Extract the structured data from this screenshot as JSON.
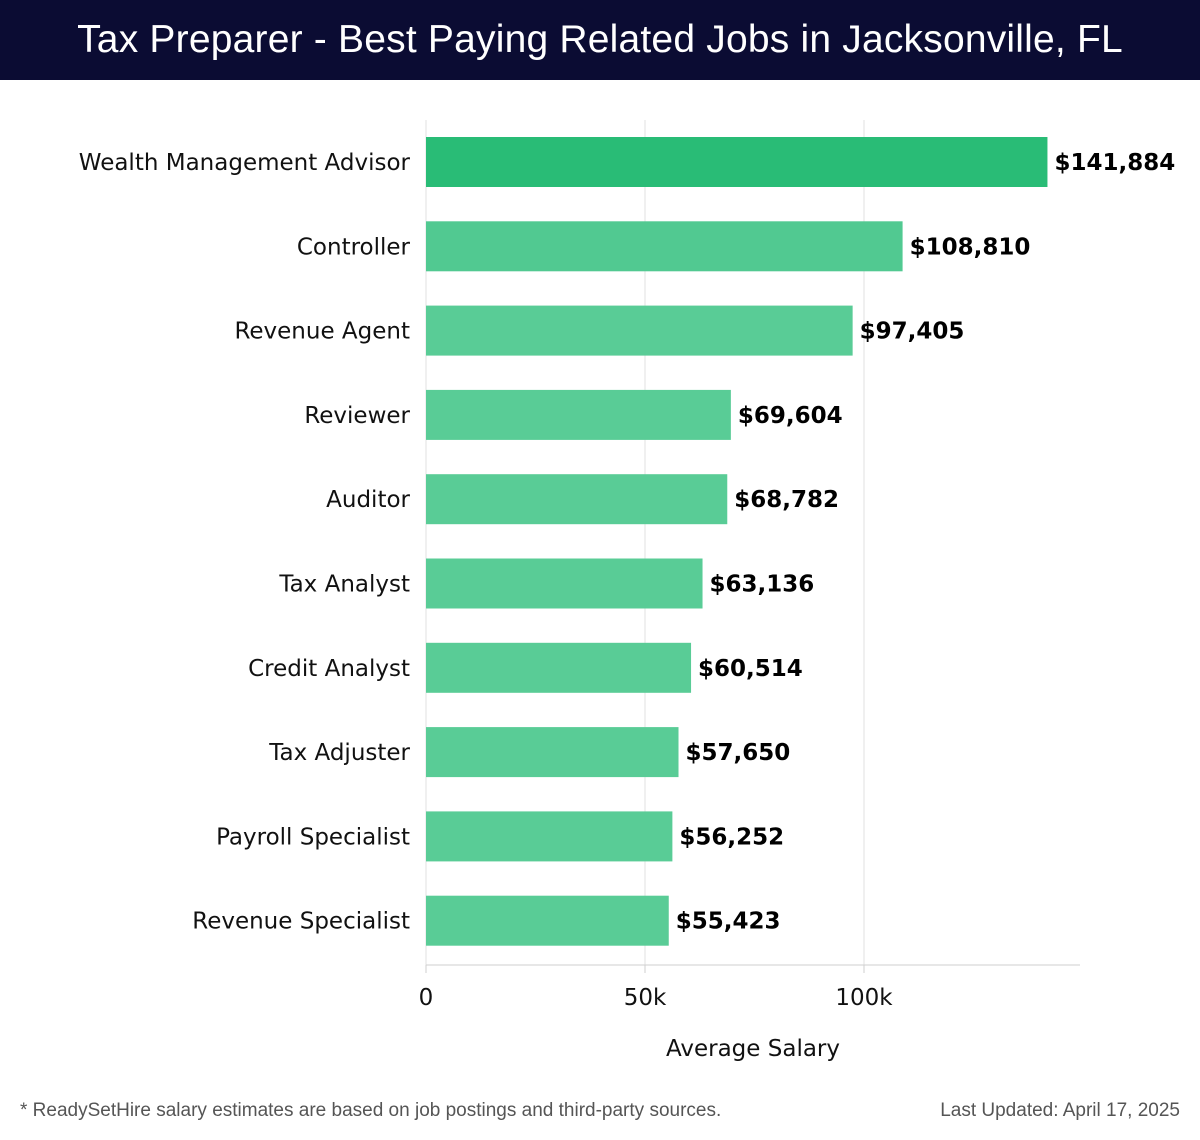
{
  "header": {
    "title": "Tax Preparer - Best Paying Related Jobs in Jacksonville, FL"
  },
  "chart_data": {
    "type": "bar",
    "orientation": "horizontal",
    "title": "Tax Preparer - Best Paying Related Jobs in Jacksonville, FL",
    "xlabel": "Average Salary",
    "ylabel": "",
    "xlim": [
      0,
      150000
    ],
    "ticks": [
      {
        "value": 0,
        "label": "0"
      },
      {
        "value": 50000,
        "label": "50k"
      },
      {
        "value": 100000,
        "label": "100k"
      }
    ],
    "grid": true,
    "categories": [
      "Wealth Management Advisor",
      "Controller",
      "Revenue Agent",
      "Reviewer",
      "Auditor",
      "Tax Analyst",
      "Credit Analyst",
      "Tax Adjuster",
      "Payroll Specialist",
      "Revenue Specialist"
    ],
    "values": [
      141884,
      108810,
      97405,
      69604,
      68782,
      63136,
      60514,
      57650,
      56252,
      55423
    ],
    "value_labels": [
      "$141,884",
      "$108,810",
      "$97,405",
      "$69,604",
      "$68,782",
      "$63,136",
      "$60,514",
      "$57,650",
      "$56,252",
      "$55,423"
    ],
    "colors": {
      "bar_max": "#29bc76",
      "bar_min": "#59cc96",
      "grid": "#e2e2e2",
      "axis": "#cfcfcf"
    }
  },
  "footer": {
    "note": "* ReadySetHire salary estimates are based on job postings and third-party sources.",
    "updated": "Last Updated: April 17, 2025"
  }
}
